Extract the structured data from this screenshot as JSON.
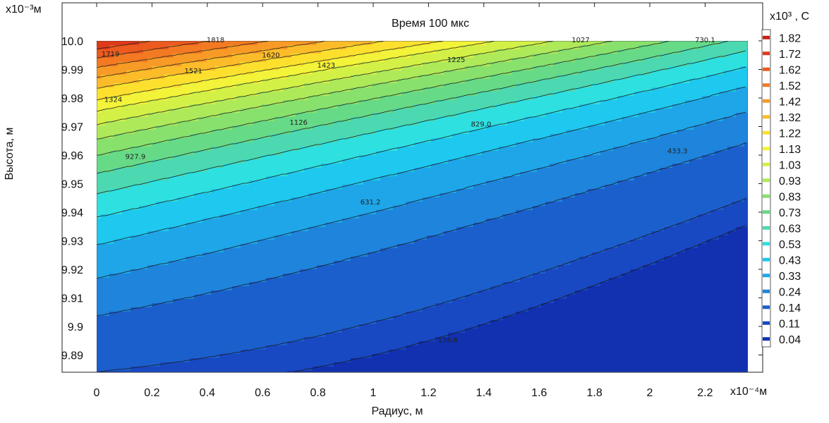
{
  "chart_data": {
    "type": "heatmap",
    "title": "Время 100 мкс",
    "xlabel": "Радиус, м",
    "ylabel": "Высота, м",
    "x_multiplier": "x10⁻⁴м",
    "y_multiplier": "x10⁻³м",
    "colorbar_unit": "x10³ , С",
    "x_ticks": [
      "0",
      "0.2",
      "0.4",
      "0.6",
      "0.8",
      "1",
      "1.2",
      "1.4",
      "1.6",
      "1.8",
      "2",
      "2.2"
    ],
    "y_ticks": [
      "10.0",
      "9.99",
      "9.98",
      "9.97",
      "9.96",
      "9.95",
      "9.94",
      "9.93",
      "9.92",
      "9.91",
      "9.9",
      "9.89"
    ],
    "xlim": [
      0,
      2.3
    ],
    "ylim": [
      9.884,
      10.0
    ],
    "colorbar_values": [
      "1.82",
      "1.72",
      "1.62",
      "1.52",
      "1.42",
      "1.32",
      "1.22",
      "1.13",
      "1.03",
      "0.93",
      "0.83",
      "0.73",
      "0.63",
      "0.53",
      "0.43",
      "0.33",
      "0.24",
      "0.14",
      "0.11",
      "0.04"
    ],
    "colorbar_colors": [
      "#c81e12",
      "#df3a1a",
      "#ec5a1f",
      "#f37a22",
      "#f89a26",
      "#fcbc2a",
      "#fde02e",
      "#f3f339",
      "#d3f047",
      "#aee95a",
      "#88e16c",
      "#66da86",
      "#4cd8b0",
      "#2ee0e0",
      "#1ec8ee",
      "#1ea6e8",
      "#1e84dc",
      "#1b5fcc",
      "#1848c2",
      "#1131b0"
    ],
    "contour_labels": [
      {
        "text": "1818",
        "x": 0.43,
        "y": 9.9995
      },
      {
        "text": "1719",
        "x": 0.05,
        "y": 9.9946
      },
      {
        "text": "1620",
        "x": 0.63,
        "y": 9.9942
      },
      {
        "text": "1521",
        "x": 0.35,
        "y": 9.9886
      },
      {
        "text": "1423",
        "x": 0.83,
        "y": 9.9906
      },
      {
        "text": "1225",
        "x": 1.3,
        "y": 9.9926
      },
      {
        "text": "1027",
        "x": 1.75,
        "y": 9.9995
      },
      {
        "text": "730.1",
        "x": 2.2,
        "y": 9.9995
      },
      {
        "text": "1324",
        "x": 0.06,
        "y": 9.9786
      },
      {
        "text": "1126",
        "x": 0.73,
        "y": 9.9706
      },
      {
        "text": "829.0",
        "x": 1.39,
        "y": 9.97
      },
      {
        "text": "433.3",
        "x": 2.1,
        "y": 9.9606
      },
      {
        "text": "927.9",
        "x": 0.14,
        "y": 9.9586
      },
      {
        "text": "631.2",
        "x": 0.99,
        "y": 9.9427
      },
      {
        "text": "136.6",
        "x": 1.27,
        "y": 9.8944
      }
    ]
  }
}
